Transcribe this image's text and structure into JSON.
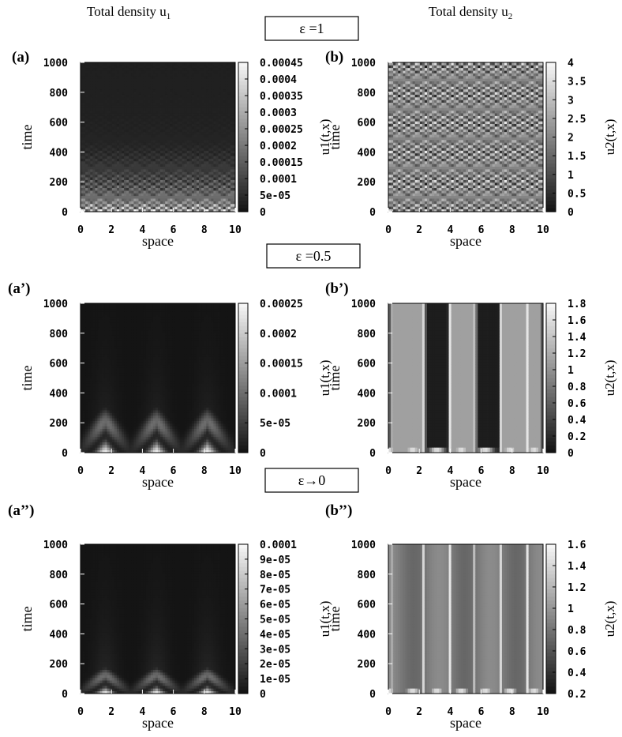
{
  "column_titles": {
    "left": "Total density u",
    "left_sub": "1",
    "right": "Total density u",
    "right_sub": "2"
  },
  "rows": [
    {
      "label": "ε =1"
    },
    {
      "label": "ε =0.5"
    },
    {
      "label": "ε→0"
    }
  ],
  "chart_data": [
    {
      "type": "heatmap",
      "panel": "(a)",
      "xlabel": "space",
      "ylabel": "time",
      "colorbar_label": "u1(t,x)",
      "xlim": [
        0,
        10
      ],
      "ylim": [
        0,
        1000
      ],
      "x_ticks": [
        "0",
        "2",
        "4",
        "6",
        "8",
        "10"
      ],
      "y_ticks": [
        "0",
        "200",
        "400",
        "600",
        "800",
        "1000"
      ],
      "colorbar_range": [
        0,
        0.00045
      ],
      "colorbar_ticks": [
        "0",
        "5e-05",
        "0.0001",
        "0.00015",
        "0.0002",
        "0.00025",
        "0.0003",
        "0.00035",
        "0.0004",
        "0.00045"
      ],
      "pattern": "fine checkerboard, bright near t=0, fading above t≈450"
    },
    {
      "type": "heatmap",
      "panel": "(b)",
      "xlabel": "space",
      "ylabel": "time",
      "colorbar_label": "u2(t,x)",
      "xlim": [
        0,
        10
      ],
      "ylim": [
        0,
        1000
      ],
      "x_ticks": [
        "0",
        "2",
        "4",
        "6",
        "8",
        "10"
      ],
      "y_ticks": [
        "0",
        "200",
        "400",
        "600",
        "800",
        "1000"
      ],
      "colorbar_range": [
        0,
        4
      ],
      "colorbar_ticks": [
        "0",
        "0.5",
        "1",
        "1.5",
        "2",
        "2.5",
        "3",
        "3.5",
        "4"
      ],
      "pattern": "fine checkerboard over whole domain"
    },
    {
      "type": "heatmap",
      "panel": "(a’)",
      "xlabel": "space",
      "ylabel": "time",
      "colorbar_label": "u1(t,x)",
      "xlim": [
        0,
        10
      ],
      "ylim": [
        0,
        1000
      ],
      "x_ticks": [
        "0",
        "2",
        "4",
        "6",
        "8",
        "10"
      ],
      "y_ticks": [
        "0",
        "200",
        "400",
        "600",
        "800",
        "1000"
      ],
      "colorbar_range": [
        0,
        0.00025
      ],
      "colorbar_ticks": [
        "0",
        "5e-05",
        "0.0001",
        "0.00015",
        "0.0002",
        "0.00025"
      ],
      "peaks_x": [
        1.6,
        4.9,
        8.2
      ],
      "peak_height_t": 340
    },
    {
      "type": "heatmap",
      "panel": "(b’)",
      "xlabel": "space",
      "ylabel": "time",
      "colorbar_label": "u2(t,x)",
      "xlim": [
        0,
        10
      ],
      "ylim": [
        0,
        1000
      ],
      "x_ticks": [
        "0",
        "2",
        "4",
        "6",
        "8",
        "10"
      ],
      "y_ticks": [
        "0",
        "200",
        "400",
        "600",
        "800",
        "1000"
      ],
      "colorbar_range": [
        0,
        1.8
      ],
      "colorbar_ticks": [
        "0",
        "0.2",
        "0.4",
        "0.6",
        "0.8",
        "1",
        "1.2",
        "1.4",
        "1.6",
        "1.8"
      ],
      "dark_bands_x": [
        [
          2.4,
          3.9
        ],
        [
          5.7,
          7.2
        ]
      ],
      "light_band_edges_x": [
        0.3,
        2.3,
        4.0,
        5.6,
        7.3,
        9.0
      ]
    },
    {
      "type": "heatmap",
      "panel": "(a’’)",
      "xlabel": "space",
      "ylabel": "time",
      "colorbar_label": "u1(t,x)",
      "xlim": [
        0,
        10
      ],
      "ylim": [
        0,
        1000
      ],
      "x_ticks": [
        "0",
        "2",
        "4",
        "6",
        "8",
        "10"
      ],
      "y_ticks": [
        "0",
        "200",
        "400",
        "600",
        "800",
        "1000"
      ],
      "colorbar_range": [
        0,
        0.0001
      ],
      "colorbar_ticks": [
        "0",
        "1e-05",
        "2e-05",
        "3e-05",
        "4e-05",
        "5e-05",
        "6e-05",
        "7e-05",
        "8e-05",
        "9e-05",
        "0.0001"
      ],
      "peaks_x": [
        1.6,
        4.9,
        8.2
      ],
      "peak_height_t": 200
    },
    {
      "type": "heatmap",
      "panel": "(b’’)",
      "xlabel": "space",
      "ylabel": "time",
      "colorbar_label": "u2(t,x)",
      "xlim": [
        0,
        10
      ],
      "ylim": [
        0,
        1000
      ],
      "x_ticks": [
        "0",
        "2",
        "4",
        "6",
        "8",
        "10"
      ],
      "y_ticks": [
        "0",
        "200",
        "400",
        "600",
        "800",
        "1000"
      ],
      "colorbar_range": [
        0.2,
        1.6
      ],
      "colorbar_ticks": [
        "0.2",
        "0.4",
        "0.6",
        "0.8",
        "1",
        "1.2",
        "1.4",
        "1.6"
      ],
      "light_band_edges_x": [
        0.3,
        2.3,
        4.0,
        5.6,
        7.3,
        9.0
      ]
    }
  ]
}
